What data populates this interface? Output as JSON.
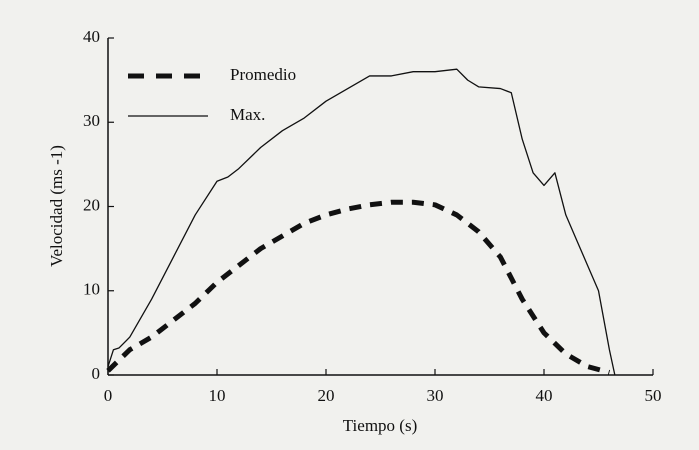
{
  "chart_data": {
    "type": "line",
    "xlabel": "Tiempo (s)",
    "ylabel": "Velocidad (ms -1)",
    "xlim": [
      0,
      50
    ],
    "xticks": [
      0,
      10,
      20,
      30,
      40,
      50
    ],
    "ylim": [
      0,
      40
    ],
    "yticks": [
      0,
      10,
      20,
      30,
      40
    ],
    "legend": "upper left",
    "series": [
      {
        "name": "Promedio",
        "color": "#111111",
        "style": "dashed",
        "x": [
          0,
          2,
          4,
          6,
          8,
          10,
          12,
          14,
          16,
          18,
          20,
          22,
          24,
          26,
          28,
          30,
          32,
          34,
          36,
          38,
          40,
          42,
          44,
          46
        ],
        "values": [
          0.5,
          3,
          4.5,
          6.5,
          8.5,
          11,
          13,
          15,
          16.5,
          18,
          19,
          19.7,
          20.2,
          20.5,
          20.5,
          20.2,
          19,
          17,
          14,
          9,
          5,
          2.5,
          1,
          0.3
        ]
      },
      {
        "name": "Max.",
        "color": "#111111",
        "style": "solid",
        "x": [
          0,
          0.5,
          1,
          2,
          4,
          6,
          8,
          10,
          11,
          12,
          14,
          16,
          18,
          20,
          22,
          24,
          26,
          28,
          30,
          32,
          33,
          34,
          36,
          37,
          38,
          39,
          40,
          41,
          42,
          43,
          44,
          45,
          46,
          46.5
        ],
        "values": [
          1,
          3,
          3.2,
          4.5,
          9,
          14,
          19,
          23,
          23.5,
          24.5,
          27,
          29,
          30.5,
          32.5,
          34,
          35.5,
          35.5,
          36,
          36,
          36.3,
          35,
          34.2,
          34,
          33.5,
          28,
          24,
          22.5,
          24,
          19,
          16,
          13,
          10,
          3,
          0
        ]
      }
    ]
  }
}
